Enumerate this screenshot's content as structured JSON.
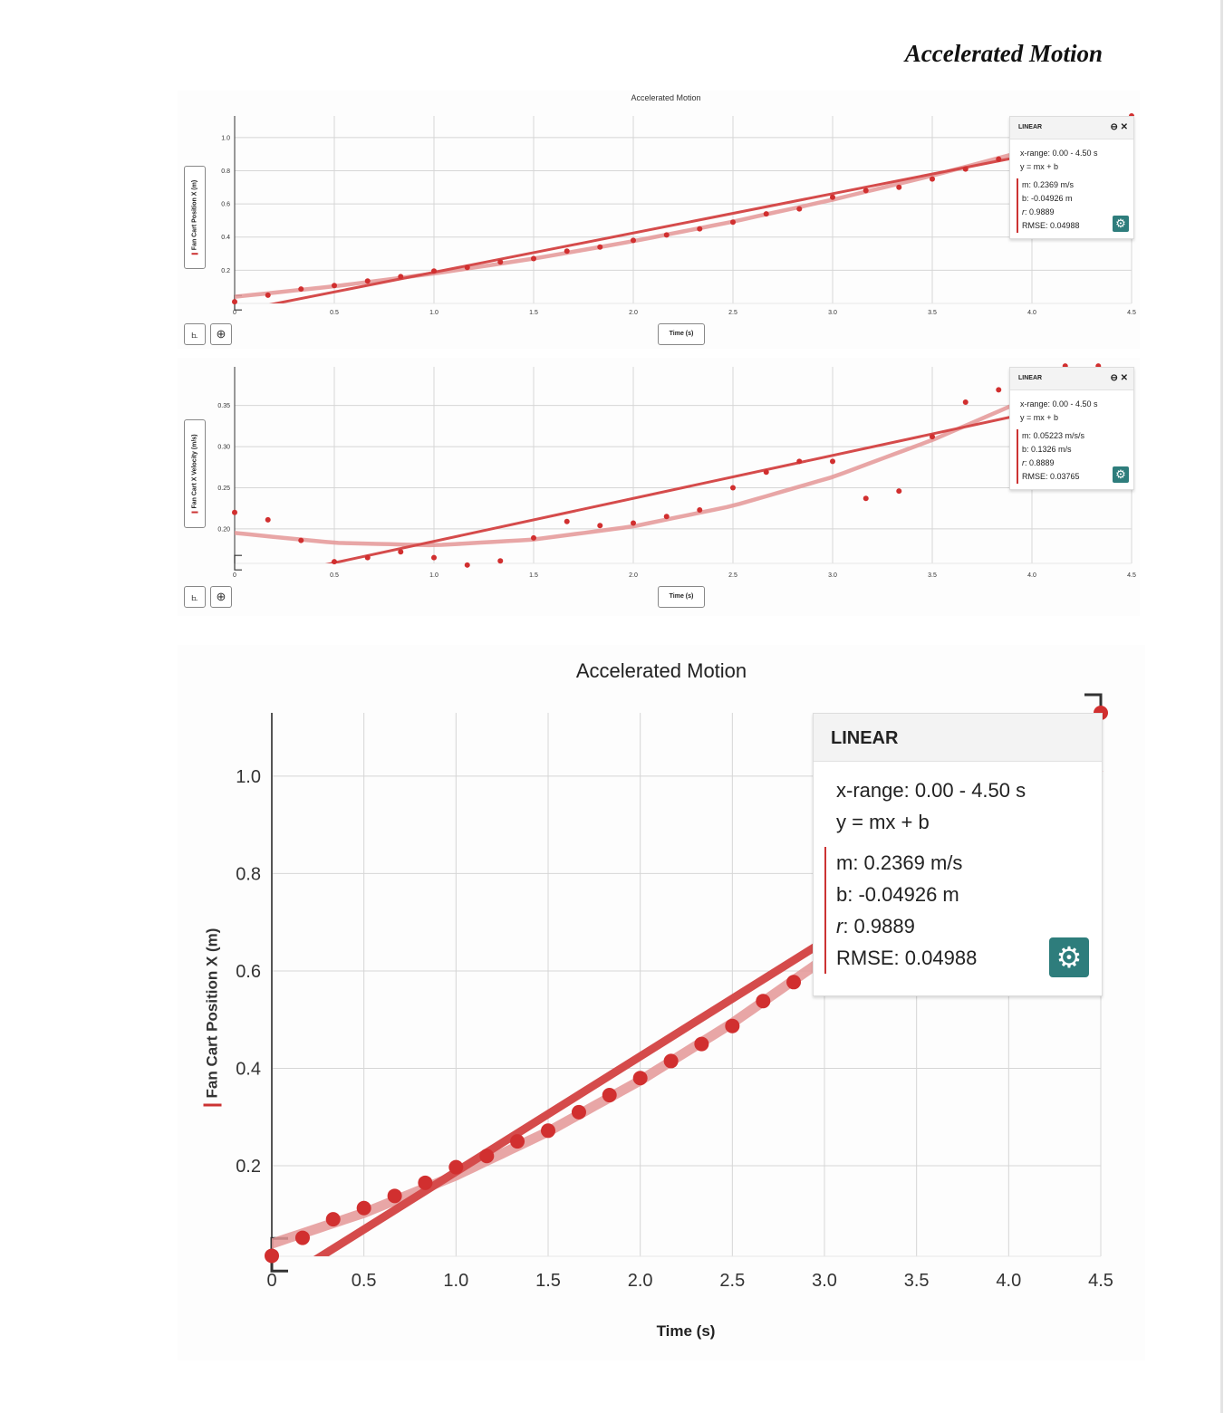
{
  "document": {
    "title": "Accelerated Motion"
  },
  "colors": {
    "points": "#d12f2f",
    "linear_fit": "#d54b4b",
    "curve_fit": "#e49696",
    "settings_button": "#2e7d7c"
  },
  "toolbar": {
    "graph_icon": "graph-axes-icon",
    "zoom_icon": "zoom-icon"
  },
  "chart_data": [
    {
      "type": "scatter",
      "title": "Accelerated Motion",
      "xlabel": "Time (s)",
      "ylabel": "Fan Cart Position X (m)",
      "xlim": [
        0,
        4.5
      ],
      "ylim": [
        0,
        1.13
      ],
      "x_ticks": [
        "0",
        "0.5",
        "1.0",
        "1.5",
        "2.0",
        "2.5",
        "3.0",
        "3.5",
        "4.0",
        "4.5"
      ],
      "y_ticks": [
        {
          "v": 0.2,
          "label": "0.2"
        },
        {
          "v": 0.4,
          "label": "0.4"
        },
        {
          "v": 0.6,
          "label": "0.6"
        },
        {
          "v": 0.8,
          "label": "0.8"
        },
        {
          "v": 1.0,
          "label": "1.0"
        }
      ],
      "grid": true,
      "points": {
        "x": [
          0,
          0.167,
          0.333,
          0.5,
          0.667,
          0.833,
          1.0,
          1.167,
          1.333,
          1.5,
          1.667,
          1.833,
          2.0,
          2.167,
          2.333,
          2.5,
          2.667,
          2.833,
          3.0,
          3.167,
          3.333,
          3.5,
          3.667,
          3.833,
          4.5
        ],
        "y": [
          0.01,
          0.05,
          0.087,
          0.108,
          0.135,
          0.162,
          0.195,
          0.217,
          0.25,
          0.27,
          0.315,
          0.34,
          0.38,
          0.413,
          0.45,
          0.49,
          0.54,
          0.57,
          0.64,
          0.68,
          0.7,
          0.75,
          0.81,
          0.87,
          1.13
        ]
      },
      "curve_fit": {
        "x": [
          0,
          0.5,
          1,
          1.5,
          2,
          2.5,
          3,
          3.5,
          4,
          4.5
        ],
        "y": [
          0.04,
          0.103,
          0.18,
          0.27,
          0.375,
          0.493,
          0.625,
          0.77,
          0.93,
          1.1
        ]
      },
      "linear_fit": {
        "header": "LINEAR",
        "x_range": "x-range: 0.00 - 4.50 s",
        "equation": "y = mx + b",
        "m_label": "m: 0.2369 m/s",
        "b_label": "b: -0.04926 m",
        "r_key": "r",
        "r_value": ": 0.9889",
        "rmse_label": "RMSE: 0.04988",
        "m": 0.2369,
        "b": -0.04926
      }
    },
    {
      "type": "scatter",
      "xlabel": "Time (s)",
      "ylabel": "Fan Cart X Velocity (m/s)",
      "xlim": [
        0,
        4.5
      ],
      "ylim": [
        0.158,
        0.397
      ],
      "x_ticks": [
        "0",
        "0.5",
        "1.0",
        "1.5",
        "2.0",
        "2.5",
        "3.0",
        "3.5",
        "4.0",
        "4.5"
      ],
      "y_ticks": [
        {
          "v": 0.2,
          "label": "0.20"
        },
        {
          "v": 0.25,
          "label": "0.25"
        },
        {
          "v": 0.3,
          "label": "0.30"
        },
        {
          "v": 0.35,
          "label": "0.35"
        }
      ],
      "grid": true,
      "points": {
        "x": [
          0,
          0.167,
          0.333,
          0.5,
          0.667,
          0.833,
          1.0,
          1.167,
          1.333,
          1.5,
          1.667,
          1.833,
          2.0,
          2.167,
          2.333,
          2.5,
          2.667,
          2.833,
          3.0,
          3.167,
          3.333,
          3.5,
          3.667,
          3.833,
          4.167,
          4.333,
          4.5
        ],
        "y": [
          0.22,
          0.211,
          0.186,
          0.16,
          0.165,
          0.172,
          0.165,
          0.156,
          0.161,
          0.189,
          0.209,
          0.204,
          0.207,
          0.215,
          0.223,
          0.25,
          0.269,
          0.282,
          0.282,
          0.237,
          0.246,
          0.312,
          0.354,
          0.369,
          0.398,
          0.398,
          0.39
        ]
      },
      "curve_fit": {
        "x": [
          0,
          0.5,
          1,
          1.5,
          2,
          2.5,
          3,
          3.5,
          3.9
        ],
        "y": [
          0.195,
          0.183,
          0.18,
          0.187,
          0.203,
          0.228,
          0.263,
          0.308,
          0.35
        ]
      },
      "linear_fit": {
        "header": "LINEAR",
        "x_range": "x-range: 0.00 - 4.50 s",
        "equation": "y = mx + b",
        "m_label": "m: 0.05223 m/s/s",
        "b_label": "b: 0.1326 m/s",
        "r_key": "r",
        "r_value": ": 0.8889",
        "rmse_label": "RMSE: 0.03765",
        "m": 0.05223,
        "b": 0.1326
      }
    },
    {
      "type": "scatter",
      "title": "Accelerated Motion",
      "xlabel": "Time (s)",
      "ylabel": "Fan Cart Position X  (m)",
      "xlim": [
        0,
        4.5
      ],
      "ylim": [
        0.014,
        1.13
      ],
      "x_ticks": [
        "0",
        "0.5",
        "1.0",
        "1.5",
        "2.0",
        "2.5",
        "3.0",
        "3.5",
        "4.0",
        "4.5"
      ],
      "y_ticks": [
        {
          "v": 0.2,
          "label": "0.2"
        },
        {
          "v": 0.4,
          "label": "0.4"
        },
        {
          "v": 0.6,
          "label": "0.6"
        },
        {
          "v": 0.8,
          "label": "0.8"
        },
        {
          "v": 1.0,
          "label": "1.0"
        }
      ],
      "grid": true,
      "points": {
        "x": [
          0,
          0.167,
          0.333,
          0.5,
          0.667,
          0.833,
          1.0,
          1.167,
          1.333,
          1.5,
          1.667,
          1.833,
          2.0,
          2.167,
          2.333,
          2.5,
          2.667,
          2.833,
          4.5
        ],
        "y": [
          0.015,
          0.052,
          0.09,
          0.113,
          0.138,
          0.165,
          0.197,
          0.22,
          0.25,
          0.272,
          0.31,
          0.345,
          0.38,
          0.415,
          0.45,
          0.487,
          0.538,
          0.577,
          1.13
        ]
      },
      "curve_fit": {
        "x": [
          0,
          0.5,
          1,
          1.5,
          2,
          2.5,
          3
        ],
        "y": [
          0.04,
          0.103,
          0.18,
          0.27,
          0.375,
          0.493,
          0.625
        ]
      },
      "linear_fit": {
        "header": "LINEAR",
        "x_range": "x-range: 0.00 - 4.50 s",
        "equation": "y = mx + b",
        "m_label": "m: 0.2369 m/s",
        "b_label": "b: -0.04926 m",
        "r_key": "r",
        "r_value": ": 0.9889",
        "rmse_label": "RMSE: 0.04988",
        "m": 0.2369,
        "b": -0.04926
      }
    }
  ]
}
